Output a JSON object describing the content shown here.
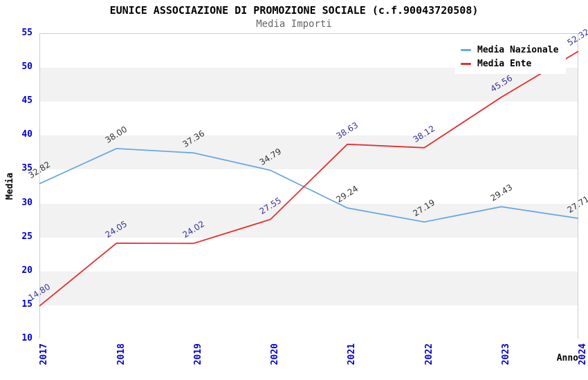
{
  "title": "EUNICE ASSOCIAZIONE DI PROMOZIONE SOCIALE (c.f.90043720508)",
  "subtitle": "Media Importi",
  "axes": {
    "y_title": "Media",
    "x_title": "Anno",
    "y_ticks": [
      55,
      50,
      45,
      40,
      35,
      30,
      25,
      20,
      15,
      10
    ]
  },
  "colors": {
    "tick_label": "#0000CC",
    "band_gray": "#F2F2F2",
    "plot_border": "#CCCCCC",
    "series_nazionale": "#6AA7E4",
    "series_ente": "#E53030",
    "label_nazionale": "#333333",
    "label_ente": "#333399"
  },
  "chart_data": {
    "type": "line",
    "title": "EUNICE ASSOCIAZIONE DI PROMOZIONE SOCIALE (c.f.90043720508)",
    "subtitle": "Media Importi",
    "categories": [
      "2017",
      "2018",
      "2019",
      "2020",
      "2021",
      "2022",
      "2023",
      "2024"
    ],
    "series": [
      {
        "name": "Media Nazionale",
        "color": "#6AA7E4",
        "label_color": "#333333",
        "values": [
          32.82,
          38.0,
          37.36,
          34.79,
          29.24,
          27.19,
          29.43,
          27.71
        ]
      },
      {
        "name": "Media Ente",
        "color": "#E53030",
        "label_color": "#333399",
        "values": [
          14.8,
          24.05,
          24.02,
          27.55,
          38.63,
          38.12,
          45.56,
          52.32
        ]
      }
    ],
    "xlabel": "Anno",
    "ylabel": "Media",
    "ylim": [
      10,
      55
    ],
    "y_tick_step": 5,
    "grid": true,
    "point_labels": true,
    "point_label_decimals": 2,
    "legend_position": "top-right"
  }
}
